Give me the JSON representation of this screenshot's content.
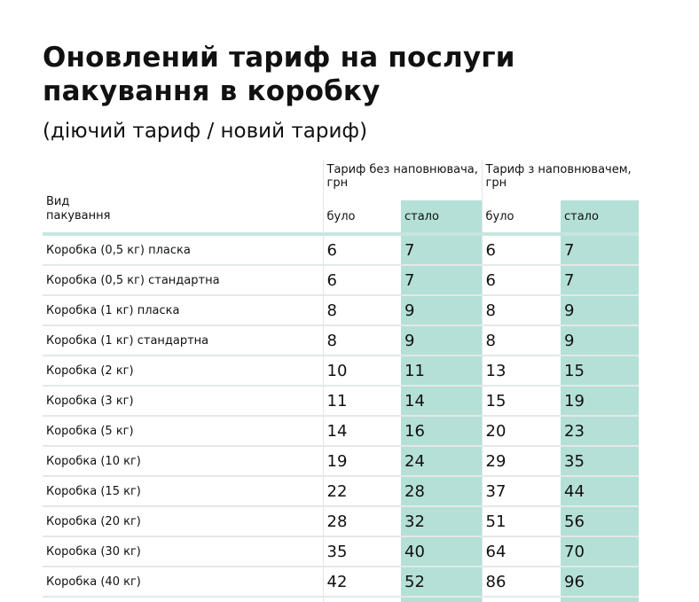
{
  "title": [
    "Оновлений тариф на послуги",
    "пакування в коробку"
  ],
  "subtitle": "(діючий тариф / новий тариф)",
  "table": {
    "col_label": "Вид пакування",
    "groups": [
      "Тариф без наповнювача, грн",
      "Тариф з наповнювачем, грн"
    ],
    "sub": [
      "було",
      "стало",
      "було",
      "стало"
    ],
    "rows": [
      [
        "Коробка (0,5 кг) пласка",
        "6",
        "7",
        "6",
        "7"
      ],
      [
        "Коробка (0,5 кг) стандартна",
        "6",
        "7",
        "6",
        "7"
      ],
      [
        "Коробка (1 кг) пласка",
        "8",
        "9",
        "8",
        "9"
      ],
      [
        "Коробка (1 кг) стандартна",
        "8",
        "9",
        "8",
        "9"
      ],
      [
        "Коробка (2 кг)",
        "10",
        "11",
        "13",
        "15"
      ],
      [
        "Коробка (3 кг)",
        "11",
        "14",
        "15",
        "19"
      ],
      [
        "Коробка (5 кг)",
        "14",
        "16",
        "20",
        "23"
      ],
      [
        "Коробка (10 кг)",
        "19",
        "24",
        "29",
        "35"
      ],
      [
        "Коробка (15 кг)",
        "22",
        "28",
        "37",
        "44"
      ],
      [
        "Коробка (20 кг)",
        "28",
        "32",
        "51",
        "56"
      ],
      [
        "Коробка (30 кг)",
        "35",
        "40",
        "64",
        "70"
      ],
      [
        "Коробка (40 кг)",
        "42",
        "52",
        "86",
        "96"
      ]
    ]
  },
  "colors": {
    "highlight": "#b4e0d8"
  }
}
